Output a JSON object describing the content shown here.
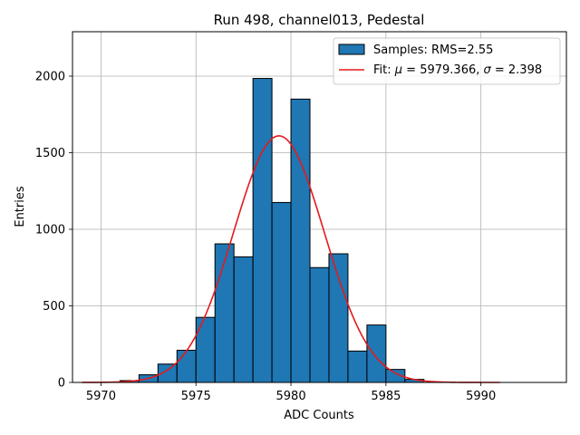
{
  "chart_data": {
    "type": "bar",
    "title": "Run 498, channel013, Pedestal",
    "xlabel": "ADC Counts",
    "ylabel": "Entries",
    "xlim": [
      5968.5,
      5994.5
    ],
    "ylim": [
      0,
      2290
    ],
    "xticks": [
      5970,
      5975,
      5980,
      5985,
      5990
    ],
    "yticks": [
      0,
      500,
      1000,
      1500,
      2000
    ],
    "grid": true,
    "legend_position": "top-right",
    "histogram": {
      "name": "Samples: RMS=2.55",
      "bin_width": 1,
      "bin_edges_start": 5971,
      "bin_centers": [
        5971.5,
        5972.5,
        5973.5,
        5974.5,
        5975.5,
        5976.5,
        5977.5,
        5978.5,
        5979.5,
        5980.5,
        5981.5,
        5982.5,
        5983.5,
        5984.5,
        5985.5,
        5986.5
      ],
      "values": [
        12,
        50,
        120,
        210,
        425,
        905,
        820,
        1985,
        1175,
        1850,
        750,
        840,
        205,
        375,
        85,
        20
      ],
      "fill_color": "#1f77b4",
      "edge_color": "#000000"
    },
    "fit": {
      "name_prefix": "Fit: ",
      "mu_symbol": "μ",
      "sigma_symbol": "σ",
      "mu_text": " = 5979.366, ",
      "sigma_text": " = 2.398",
      "mu": 5979.366,
      "sigma": 2.398,
      "amplitude": 1610,
      "x_range": [
        5969,
        5991
      ],
      "color": "#e41a1c"
    }
  }
}
